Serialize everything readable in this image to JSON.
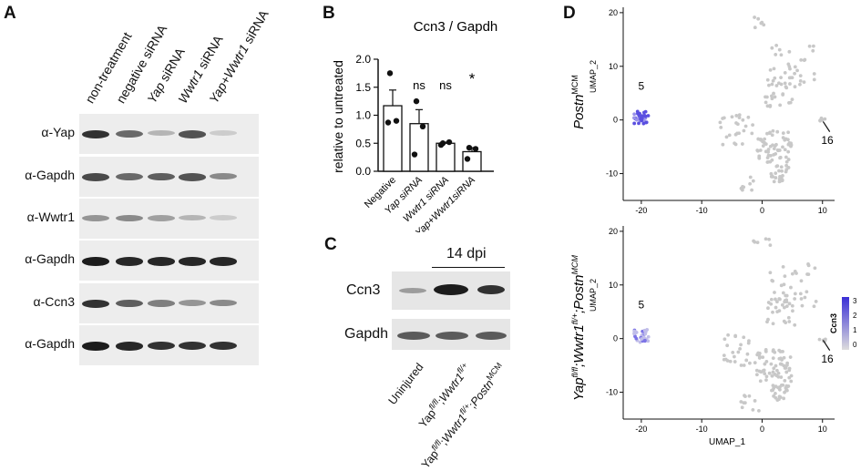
{
  "panels": {
    "A": "A",
    "B": "B",
    "C": "C",
    "D": "D"
  },
  "panelA": {
    "lanes": [
      {
        "pre": "non-treatment",
        "it": "",
        "post": ""
      },
      {
        "pre": "negative siRNA",
        "it": "",
        "post": ""
      },
      {
        "pre": "",
        "it": "Yap",
        "post": " siRNA"
      },
      {
        "pre": "",
        "it": "Wwtr1",
        "post": " siRNA"
      },
      {
        "pre": "",
        "it": "Yap+Wwtr1",
        "post": " siRNA"
      }
    ],
    "rows": [
      "α-Yap",
      "α-Gapdh",
      "α-Wwtr1",
      "α-Gapdh",
      "α-Ccn3",
      "α-Gapdh"
    ],
    "band_intensity": [
      [
        0.85,
        0.6,
        0.25,
        0.7,
        0.15
      ],
      [
        0.75,
        0.6,
        0.65,
        0.7,
        0.45
      ],
      [
        0.4,
        0.45,
        0.35,
        0.25,
        0.15
      ],
      [
        0.95,
        0.9,
        0.9,
        0.9,
        0.9
      ],
      [
        0.85,
        0.65,
        0.5,
        0.4,
        0.45
      ],
      [
        0.95,
        0.9,
        0.85,
        0.85,
        0.85
      ]
    ]
  },
  "chart_data": {
    "type": "bar",
    "title": "Ccn3 / Gapdh",
    "ylabel": "relative to untreated",
    "ylim": [
      0,
      2.0
    ],
    "yticks": [
      "0.0",
      "0.5",
      "1.0",
      "1.5",
      "2.0"
    ],
    "categories": [
      "Negative",
      "Yap siRNA",
      "Wwtr1 siRNA",
      "Yap+Wwtr1siRNA"
    ],
    "values": [
      1.17,
      0.85,
      0.5,
      0.35
    ],
    "errors": [
      0.28,
      0.25,
      0.02,
      0.07
    ],
    "points": [
      [
        1.75,
        0.9,
        0.87
      ],
      [
        1.25,
        0.8,
        0.3
      ],
      [
        0.5,
        0.52,
        0.47
      ],
      [
        0.42,
        0.4,
        0.22
      ]
    ],
    "significance": [
      "",
      "ns",
      "ns",
      "*"
    ]
  },
  "panelC": {
    "dpi_label": "14 dpi",
    "rows": [
      "Ccn3",
      "Gapdh"
    ],
    "lanes": [
      "Uninjured",
      "Yapfl/fl;Wwtr1fl/+",
      "Yapfl/fl;Wwtr1fl/+;PostnMCM"
    ]
  },
  "panelD": {
    "top_title": "PostnMCM",
    "bottom_title": "Yapfl/fl;Wwtr1fl/+;PostnMCM",
    "ylabel": "UMAP_2",
    "xlabel": "UMAP_1",
    "yticks": [
      "20",
      "10",
      "0",
      "-10"
    ],
    "xticks": [
      "-20",
      "-10",
      "0",
      "10"
    ],
    "cluster5": "5",
    "cluster16": "16",
    "legend_title": "Ccn3",
    "legend_ticks": [
      "3",
      "2",
      "1",
      "0"
    ],
    "accent": "#3a2fd6"
  }
}
